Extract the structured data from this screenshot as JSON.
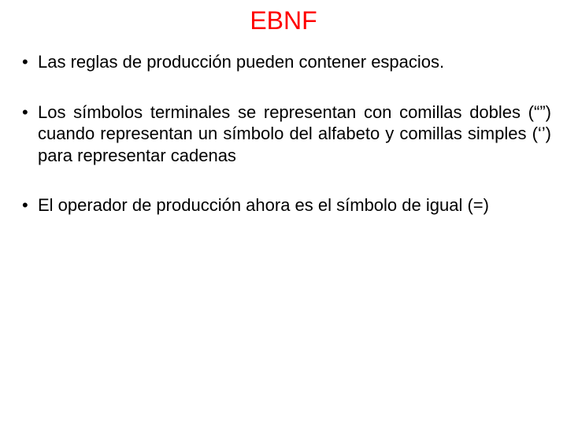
{
  "slide": {
    "title": "EBNF",
    "title_color": "#ff0000",
    "title_fontsize": 32,
    "body_fontsize": 22,
    "body_color": "#000000",
    "background_color": "#ffffff",
    "bullets": [
      {
        "text": "Las reglas de producción pueden contener espacios.",
        "justify": false
      },
      {
        "text": "Los símbolos terminales se representan con comillas dobles (“”) cuando representan un símbolo del alfabeto y comillas simples (‘’) para representar cadenas",
        "justify": true
      },
      {
        "text": "El operador de producción ahora es el símbolo de igual (=)",
        "justify": true
      }
    ]
  }
}
